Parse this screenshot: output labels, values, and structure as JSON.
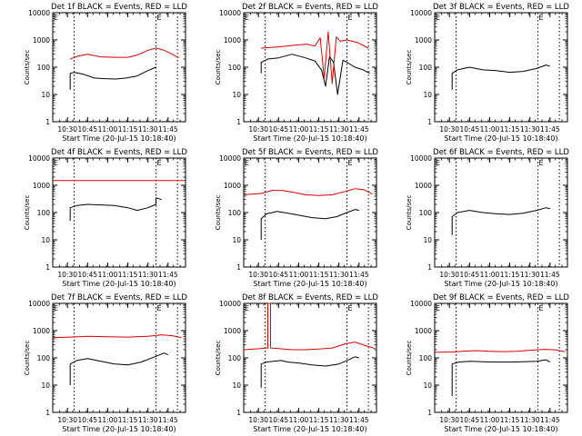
{
  "colors": {
    "events": "#000000",
    "lld": "#dd0000",
    "axis": "#000000",
    "background": "#ffffff"
  },
  "common": {
    "xlabel": "Start Time (20-Jul-15 10:18:40)",
    "ylabel": "Counts/sec",
    "x_ticks": [
      "10:30",
      "10:45",
      "11:00",
      "11:15",
      "11:30",
      "11:45"
    ],
    "y_ticks": [
      "1",
      "10",
      "100",
      "1000",
      "10000"
    ],
    "marker_label": "E",
    "dotted_lines_at": [
      "10:35",
      "11:36",
      "11:52"
    ]
  },
  "chart_data": [
    {
      "type": "line",
      "title": "Det 1f BLACK = Events, RED = LLD",
      "xlabel": "Start Time (20-Jul-15 10:18:40)",
      "ylabel": "Counts/sec",
      "yscale": "log",
      "ylim": [
        1,
        10000
      ],
      "xlim": [
        "10:19",
        "11:58"
      ],
      "series": [
        {
          "name": "Events",
          "color": "#000000",
          "x": [
            "10:32",
            "10:32",
            "10:35",
            "10:42",
            "10:50",
            "10:58",
            "11:06",
            "11:14",
            "11:22",
            "11:30",
            "11:36",
            "11:36"
          ],
          "y": [
            15,
            60,
            65,
            55,
            40,
            38,
            37,
            40,
            48,
            75,
            100,
            90
          ]
        },
        {
          "name": "LLD",
          "color": "#dd0000",
          "x": [
            "10:32",
            "10:38",
            "10:45",
            "10:55",
            "11:05",
            "11:15",
            "11:22",
            "11:30",
            "11:36",
            "11:42",
            "11:48",
            "11:53"
          ],
          "y": [
            200,
            260,
            300,
            240,
            230,
            230,
            280,
            420,
            500,
            420,
            300,
            220
          ]
        }
      ]
    },
    {
      "type": "line",
      "title": "Det 2f BLACK = Events, RED = LLD",
      "xlabel": "Start Time (20-Jul-15 10:18:40)",
      "ylabel": "Counts/sec",
      "yscale": "log",
      "ylim": [
        1,
        10000
      ],
      "xlim": [
        "10:19",
        "11:58"
      ],
      "series": [
        {
          "name": "Events",
          "color": "#000000",
          "x": [
            "10:32",
            "10:32",
            "10:37",
            "10:45",
            "10:55",
            "11:05",
            "11:12",
            "11:17",
            "11:20",
            "11:23",
            "11:26",
            "11:29",
            "11:33",
            "11:36",
            "11:42",
            "11:48",
            "11:53"
          ],
          "y": [
            60,
            150,
            200,
            220,
            300,
            220,
            170,
            80,
            20,
            250,
            150,
            10,
            180,
            150,
            100,
            80,
            60
          ]
        },
        {
          "name": "LLD",
          "color": "#dd0000",
          "x": [
            "10:32",
            "10:45",
            "10:58",
            "11:06",
            "11:12",
            "11:16",
            "11:19",
            "11:22",
            "11:25",
            "11:28",
            "11:31",
            "11:36",
            "11:44",
            "11:52"
          ],
          "y": [
            500,
            560,
            650,
            700,
            600,
            1200,
            40,
            2000,
            25,
            1300,
            900,
            1000,
            800,
            500
          ]
        }
      ]
    },
    {
      "type": "line",
      "title": "Det 3f BLACK = Events, RED = LLD",
      "xlabel": "Start Time (20-Jul-15 10:18:40)",
      "ylabel": "Counts/sec",
      "yscale": "log",
      "ylim": [
        1,
        10000
      ],
      "xlim": [
        "10:19",
        "11:58"
      ],
      "series": [
        {
          "name": "Events",
          "color": "#000000",
          "x": [
            "10:32",
            "10:32",
            "10:36",
            "10:45",
            "10:55",
            "11:05",
            "11:15",
            "11:25",
            "11:35",
            "11:42",
            "11:45"
          ],
          "y": [
            15,
            60,
            80,
            100,
            80,
            75,
            65,
            70,
            90,
            120,
            110
          ]
        }
      ]
    },
    {
      "type": "line",
      "title": "Det 4f BLACK = Events, RED = LLD",
      "xlabel": "Start Time (20-Jul-15 10:18:40)",
      "ylabel": "Counts/sec",
      "yscale": "log",
      "ylim": [
        1,
        10000
      ],
      "xlim": [
        "10:19",
        "11:58"
      ],
      "series": [
        {
          "name": "Events",
          "color": "#000000",
          "x": [
            "10:32",
            "10:32",
            "10:37",
            "10:45",
            "10:55",
            "11:05",
            "11:15",
            "11:22",
            "11:30",
            "11:36",
            "11:36",
            "11:40"
          ],
          "y": [
            50,
            150,
            180,
            200,
            190,
            180,
            150,
            120,
            150,
            200,
            350,
            300
          ]
        },
        {
          "name": "LLD",
          "color": "#dd0000",
          "x": [
            "10:19",
            "11:58"
          ],
          "y": [
            1500,
            1500
          ]
        }
      ]
    },
    {
      "type": "line",
      "title": "Det 5f BLACK = Events, RED = LLD",
      "xlabel": "Start Time (20-Jul-15 10:18:40)",
      "ylabel": "Counts/sec",
      "yscale": "log",
      "ylim": [
        1,
        10000
      ],
      "xlim": [
        "10:19",
        "11:58"
      ],
      "series": [
        {
          "name": "Events",
          "color": "#000000",
          "x": [
            "10:32",
            "10:32",
            "10:36",
            "10:44",
            "10:52",
            "11:00",
            "11:10",
            "11:20",
            "11:28",
            "11:36",
            "11:42",
            "11:45"
          ],
          "y": [
            10,
            60,
            90,
            110,
            95,
            80,
            65,
            60,
            70,
            100,
            130,
            120
          ]
        },
        {
          "name": "LLD",
          "color": "#dd0000",
          "x": [
            "10:19",
            "10:32",
            "10:40",
            "10:48",
            "10:56",
            "11:05",
            "11:15",
            "11:25",
            "11:35",
            "11:42",
            "11:48",
            "11:55"
          ],
          "y": [
            450,
            500,
            650,
            650,
            550,
            450,
            420,
            450,
            600,
            750,
            700,
            480
          ]
        }
      ]
    },
    {
      "type": "line",
      "title": "Det 6f BLACK = Events, RED = LLD",
      "xlabel": "Start Time (20-Jul-15 10:18:40)",
      "ylabel": "Counts/sec",
      "yscale": "log",
      "ylim": [
        1,
        10000
      ],
      "xlim": [
        "10:19",
        "11:58"
      ],
      "series": [
        {
          "name": "Events",
          "color": "#000000",
          "x": [
            "10:32",
            "10:32",
            "10:36",
            "10:45",
            "10:55",
            "11:05",
            "11:15",
            "11:25",
            "11:35",
            "11:42",
            "11:45"
          ],
          "y": [
            15,
            70,
            100,
            120,
            100,
            90,
            85,
            95,
            120,
            150,
            140
          ]
        }
      ]
    },
    {
      "type": "line",
      "title": "Det 7f BLACK = Events, RED = LLD",
      "xlabel": "Start Time (20-Jul-15 10:18:40)",
      "ylabel": "Counts/sec",
      "yscale": "log",
      "ylim": [
        1,
        10000
      ],
      "xlim": [
        "10:19",
        "11:58"
      ],
      "series": [
        {
          "name": "Events",
          "color": "#000000",
          "x": [
            "10:32",
            "10:32",
            "10:37",
            "10:45",
            "10:55",
            "11:05",
            "11:15",
            "11:25",
            "11:35",
            "11:42",
            "11:45"
          ],
          "y": [
            10,
            60,
            80,
            95,
            75,
            60,
            55,
            70,
            110,
            150,
            130
          ]
        },
        {
          "name": "LLD",
          "color": "#dd0000",
          "x": [
            "10:19",
            "10:32",
            "10:45",
            "11:00",
            "11:15",
            "11:30",
            "11:40",
            "11:48",
            "11:55"
          ],
          "y": [
            550,
            580,
            620,
            600,
            580,
            620,
            700,
            650,
            550
          ]
        }
      ]
    },
    {
      "type": "line",
      "title": "Det 8f BLACK = Events, RED = LLD",
      "xlabel": "Start Time (20-Jul-15 10:18:40)",
      "ylabel": "Counts/sec",
      "yscale": "log",
      "ylim": [
        1,
        10000
      ],
      "xlim": [
        "10:19",
        "11:58"
      ],
      "series": [
        {
          "name": "Events",
          "color": "#000000",
          "x": [
            "10:32",
            "10:32",
            "10:36",
            "10:41",
            "10:47",
            "10:52",
            "11:00",
            "11:10",
            "11:20",
            "11:30",
            "11:36",
            "11:42",
            "11:45"
          ],
          "y": [
            8,
            60,
            70,
            75,
            80,
            70,
            65,
            55,
            50,
            60,
            80,
            110,
            100
          ]
        },
        {
          "name": "LLD",
          "color": "#dd0000",
          "x": [
            "10:19",
            "10:32",
            "10:37",
            "10:37",
            "10:39",
            "10:39",
            "10:45",
            "10:55",
            "11:05",
            "11:15",
            "11:25",
            "11:35",
            "11:42",
            "11:50",
            "11:57"
          ],
          "y": [
            200,
            220,
            230,
            10000,
            10000,
            230,
            220,
            200,
            200,
            210,
            230,
            330,
            380,
            280,
            220
          ]
        }
      ]
    },
    {
      "type": "line",
      "title": "Det 9f BLACK = Events, RED = LLD",
      "xlabel": "Start Time (20-Jul-15 10:18:40)",
      "ylabel": "Counts/sec",
      "yscale": "log",
      "ylim": [
        1,
        10000
      ],
      "xlim": [
        "10:19",
        "11:58"
      ],
      "series": [
        {
          "name": "Events",
          "color": "#000000",
          "x": [
            "10:32",
            "10:32",
            "10:37",
            "10:45",
            "10:55",
            "11:05",
            "11:15",
            "11:25",
            "11:35",
            "11:42",
            "11:45"
          ],
          "y": [
            4,
            60,
            70,
            75,
            72,
            70,
            70,
            72,
            75,
            85,
            70
          ]
        },
        {
          "name": "LLD",
          "color": "#dd0000",
          "x": [
            "10:19",
            "10:32",
            "10:40",
            "10:50",
            "11:00",
            "11:10",
            "11:20",
            "11:30",
            "11:40",
            "11:48",
            "11:56"
          ],
          "y": [
            160,
            165,
            175,
            185,
            175,
            170,
            175,
            190,
            205,
            200,
            170
          ]
        }
      ]
    }
  ]
}
